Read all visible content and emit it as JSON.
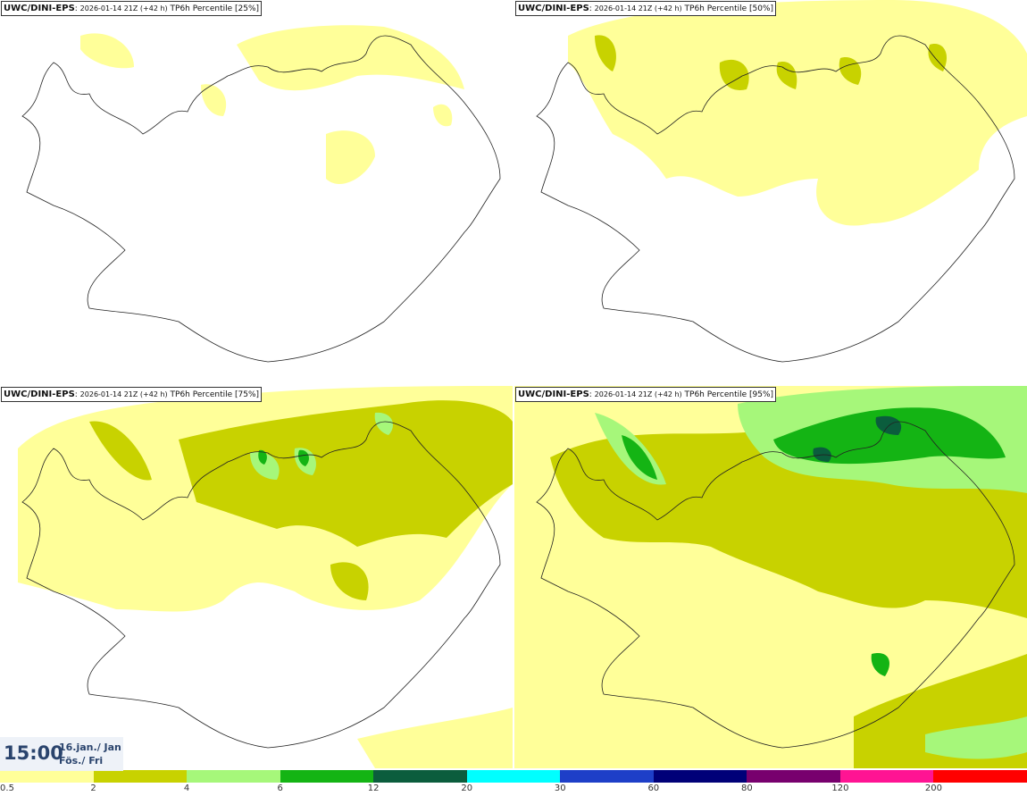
{
  "panels": [
    {
      "model": "UWC/DINI-EPS",
      "timestamp": "2026-01-14 21Z (+42 h)",
      "field": "TP6h Percentile [25%]"
    },
    {
      "model": "UWC/DINI-EPS",
      "timestamp": "2026-01-14 21Z (+42 h)",
      "field": "TP6h Percentile [50%]"
    },
    {
      "model": "UWC/DINI-EPS",
      "timestamp": "2026-01-14 21Z (+42 h)",
      "field": "TP6h Percentile [75%]"
    },
    {
      "model": "UWC/DINI-EPS",
      "timestamp": "2026-01-14 21Z (+42 h)",
      "field": "TP6h Percentile [95%]"
    }
  ],
  "valid": {
    "time": "15:00",
    "date_line1": "16.jan./ Jan",
    "date_line2": "Fös./ Fri"
  },
  "legend": {
    "colors": [
      "#ffff99",
      "#c8d200",
      "#a6f77a",
      "#14b414",
      "#0b5d3d",
      "#00ffff",
      "#1e3fc8",
      "#000078",
      "#78006e",
      "#ff1493",
      "#ff0000"
    ],
    "labels": [
      "0.5",
      "2",
      "4",
      "6",
      "12",
      "20",
      "30",
      "60",
      "80",
      "120",
      "200"
    ]
  }
}
